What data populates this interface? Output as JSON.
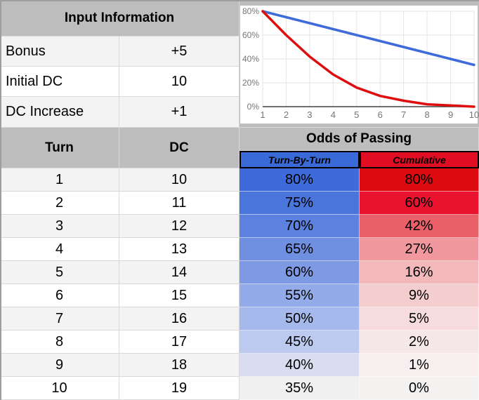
{
  "input_information": {
    "title": "Input Information",
    "rows": [
      {
        "label": "Bonus",
        "value": "+5"
      },
      {
        "label": "Initial DC",
        "value": "10"
      },
      {
        "label": "DC Increase",
        "value": "+1"
      }
    ]
  },
  "table": {
    "turn_header": "Turn",
    "dc_header": "DC",
    "odds_header": "Odds of Passing",
    "turn_by_turn_header": "Turn-By-Turn",
    "cumulative_header": "Cumulative",
    "rows": [
      {
        "turn": "1",
        "dc": "10",
        "turn_by_turn": "80%",
        "cumulative": "80%",
        "tbt_color": "#3d6bd9",
        "cum_color": "#dc0b10"
      },
      {
        "turn": "2",
        "dc": "11",
        "turn_by_turn": "75%",
        "cumulative": "60%",
        "tbt_color": "#4a75db",
        "cum_color": "#e9132f"
      },
      {
        "turn": "3",
        "dc": "12",
        "turn_by_turn": "70%",
        "cumulative": "42%",
        "tbt_color": "#5c81de",
        "cum_color": "#ea5f68"
      },
      {
        "turn": "4",
        "dc": "13",
        "turn_by_turn": "65%",
        "cumulative": "27%",
        "tbt_color": "#6f8fe1",
        "cum_color": "#f0989e"
      },
      {
        "turn": "5",
        "dc": "14",
        "turn_by_turn": "60%",
        "cumulative": "16%",
        "tbt_color": "#7f9ae4",
        "cum_color": "#f2b8ba"
      },
      {
        "turn": "6",
        "dc": "15",
        "turn_by_turn": "55%",
        "cumulative": "9%",
        "tbt_color": "#93abe8",
        "cum_color": "#f4cdcf"
      },
      {
        "turn": "7",
        "dc": "16",
        "turn_by_turn": "50%",
        "cumulative": "5%",
        "tbt_color": "#a6b9ec",
        "cum_color": "#f6dcdd"
      },
      {
        "turn": "8",
        "dc": "17",
        "turn_by_turn": "45%",
        "cumulative": "2%",
        "tbt_color": "#bdcaf0",
        "cum_color": "#f6e8e8"
      },
      {
        "turn": "9",
        "dc": "18",
        "turn_by_turn": "40%",
        "cumulative": "1%",
        "tbt_color": "#d8def0",
        "cum_color": "#f7efef"
      },
      {
        "turn": "10",
        "dc": "19",
        "turn_by_turn": "35%",
        "cumulative": "0%",
        "tbt_color": "#f0f0f1",
        "cum_color": "#f4f1f1"
      }
    ]
  },
  "colors": {
    "header_gray": "#bdbdbd",
    "band_gray": "#f3f3f3",
    "subheader_blue": "#3a6ad8",
    "subheader_red": "#e00d23",
    "gridline": "#d9d9d9",
    "chart_axis_text": "#757575",
    "chart_gridline": "#e6e6e6",
    "chart_axis_line": "#424242"
  },
  "chart_data": {
    "type": "line",
    "x": [
      1,
      2,
      3,
      4,
      5,
      6,
      7,
      8,
      9,
      10
    ],
    "xlim": [
      1,
      10
    ],
    "ylim": [
      0,
      80
    ],
    "yticks": [
      0,
      20,
      40,
      60,
      80
    ],
    "ytick_suffix": "%",
    "xtick_labels": [
      "1",
      "2",
      "3",
      "4",
      "5",
      "6",
      "7",
      "8",
      "9",
      "10"
    ],
    "grid": true,
    "legend": "none",
    "series": [
      {
        "name": "Turn-By-Turn",
        "color": "#3e6bd9",
        "values": [
          80,
          75,
          70,
          65,
          60,
          55,
          50,
          45,
          40,
          35
        ]
      },
      {
        "name": "Cumulative",
        "color": "#de0e10",
        "values": [
          80,
          60,
          42,
          27,
          16,
          9,
          5,
          2,
          1,
          0
        ]
      }
    ]
  }
}
